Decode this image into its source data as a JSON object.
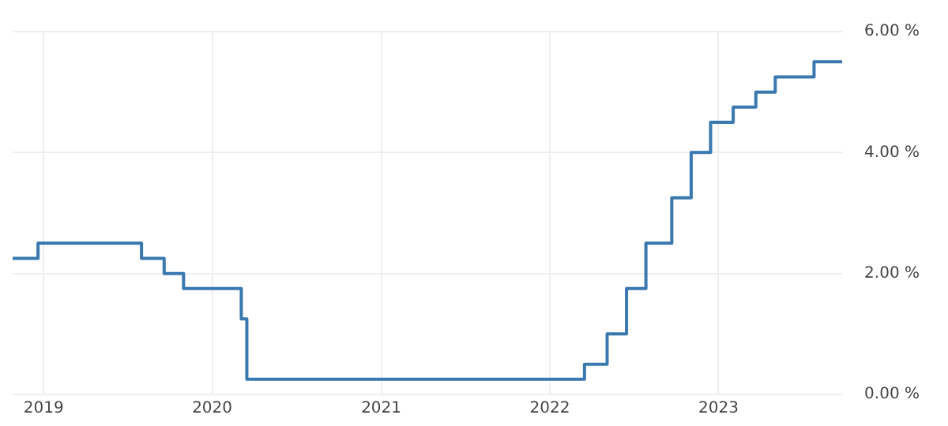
{
  "chart_data": {
    "type": "step",
    "x": [
      "2018-10-26",
      "2018-12-20",
      "2019-08-01",
      "2019-09-19",
      "2019-10-31",
      "2020-03-04",
      "2020-03-16",
      "2022-03-17",
      "2022-05-05",
      "2022-06-16",
      "2022-07-28",
      "2022-09-22",
      "2022-11-03",
      "2022-12-15",
      "2023-02-02",
      "2023-03-23",
      "2023-05-04",
      "2023-07-27",
      "2023-09-26"
    ],
    "values": [
      2.25,
      2.5,
      2.25,
      2.0,
      1.75,
      1.25,
      0.25,
      0.5,
      1.0,
      1.75,
      2.5,
      3.25,
      4.0,
      4.5,
      4.75,
      5.0,
      5.25,
      5.5,
      5.5
    ],
    "color": "#3a78b0",
    "xlim": [
      "2018-10-26",
      "2023-09-26"
    ],
    "xticks": [
      {
        "value": "2019-01-01",
        "label": "2019"
      },
      {
        "value": "2020-01-01",
        "label": "2020"
      },
      {
        "value": "2021-01-01",
        "label": "2021"
      },
      {
        "value": "2022-01-01",
        "label": "2022"
      },
      {
        "value": "2023-01-01",
        "label": "2023"
      }
    ],
    "ylim": [
      0,
      6
    ],
    "yticks": [
      {
        "value": 0,
        "label": "0.00 %"
      },
      {
        "value": 2,
        "label": "2.00 %"
      },
      {
        "value": 4,
        "label": "4.00 %"
      },
      {
        "value": 6,
        "label": "6.00 %"
      }
    ],
    "grid": true,
    "legend": false,
    "marker": "none",
    "line_style": "solid"
  }
}
